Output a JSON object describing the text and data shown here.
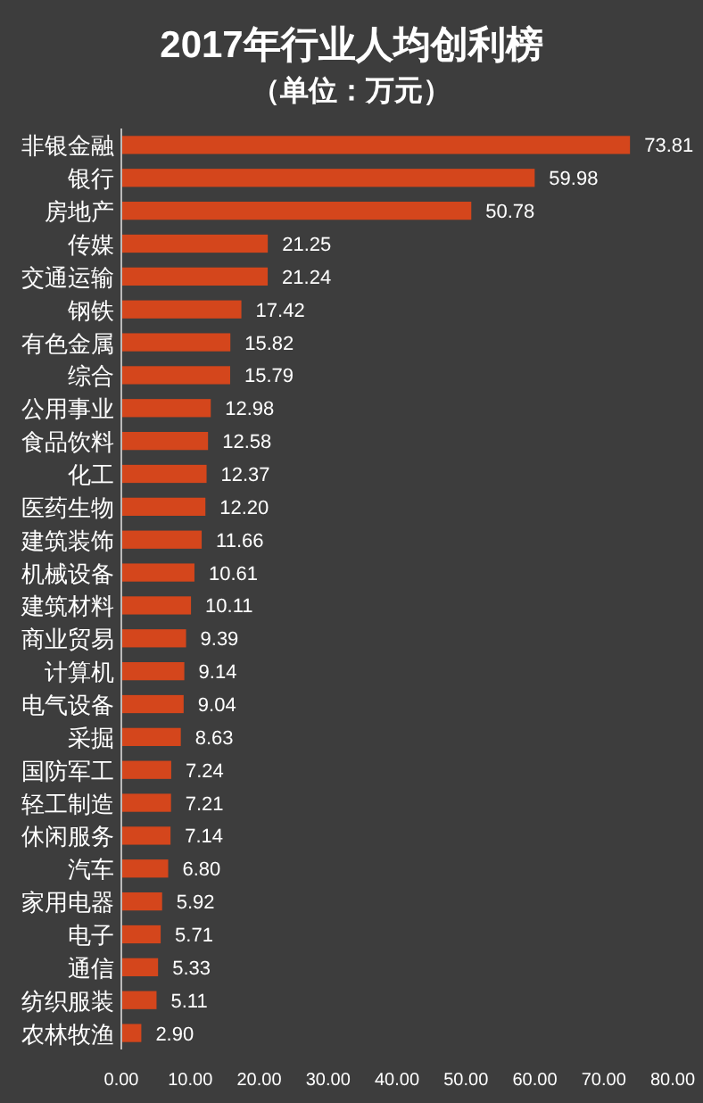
{
  "chart_data": {
    "type": "bar",
    "orientation": "horizontal",
    "title": "2017年行业人均创利榜",
    "subtitle": "（单位：万元）",
    "categories": [
      "非银金融",
      "银行",
      "房地产",
      "传媒",
      "交通运输",
      "钢铁",
      "有色金属",
      "综合",
      "公用事业",
      "食品饮料",
      "化工",
      "医药生物",
      "建筑装饰",
      "机械设备",
      "建筑材料",
      "商业贸易",
      "计算机",
      "电气设备",
      "采掘",
      "国防军工",
      "轻工制造",
      "休闲服务",
      "汽车",
      "家用电器",
      "电子",
      "通信",
      "纺织服装",
      "农林牧渔"
    ],
    "values": [
      73.81,
      59.98,
      50.78,
      21.25,
      21.24,
      17.42,
      15.82,
      15.79,
      12.98,
      12.58,
      12.37,
      12.2,
      11.66,
      10.61,
      10.11,
      9.39,
      9.14,
      9.04,
      8.63,
      7.24,
      7.21,
      7.14,
      6.8,
      5.92,
      5.71,
      5.33,
      5.11,
      2.9
    ],
    "value_labels": [
      "73.81",
      "59.98",
      "50.78",
      "21.25",
      "21.24",
      "17.42",
      "15.82",
      "15.79",
      "12.98",
      "12.58",
      "12.37",
      "12.20",
      "11.66",
      "10.61",
      "10.11",
      "9.39",
      "9.14",
      "9.04",
      "8.63",
      "7.24",
      "7.21",
      "7.14",
      "6.80",
      "5.92",
      "5.71",
      "5.33",
      "5.11",
      "2.90"
    ],
    "color": "#d4461c",
    "xlim": [
      0,
      80
    ],
    "xticks": [
      {
        "value": 0,
        "label": "0.00"
      },
      {
        "value": 10,
        "label": "10.00"
      },
      {
        "value": 20,
        "label": "20.00"
      },
      {
        "value": 30,
        "label": "30.00"
      },
      {
        "value": 40,
        "label": "40.00"
      },
      {
        "value": 50,
        "label": "50.00"
      },
      {
        "value": 60,
        "label": "60.00"
      },
      {
        "value": 70,
        "label": "70.00"
      },
      {
        "value": 80,
        "label": "80.00"
      }
    ],
    "grid": false
  }
}
